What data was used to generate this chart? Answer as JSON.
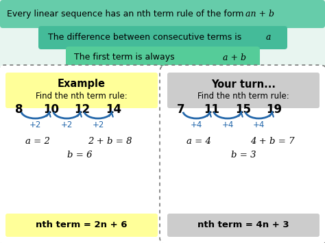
{
  "bg_color": "#e8f5f0",
  "top_banner_color": "#66ccaa",
  "row2_bg": "#44bb99",
  "row3_bg": "#55cc99",
  "top_banner_text": "Every linear sequence has an nth term rule of the form ",
  "top_banner_math": "an + b",
  "row2_text": "The difference between consecutive terms is ",
  "row2_math": "a",
  "row3_text": "The first term is always ",
  "row3_math": "a + b",
  "example_title": "Example",
  "example_subtitle": "Find the nth term rule:",
  "example_seq": [
    8,
    10,
    12,
    14
  ],
  "example_diff": "+2",
  "example_a_eq": "a = 2",
  "example_ab_eq": "2 + b = 8",
  "example_b_eq": "b = 6",
  "example_result": "nth term = 2n + 6",
  "example_header_color": "#ffff99",
  "example_result_color": "#ffff99",
  "yourturn_title": "Your turn...",
  "yourturn_subtitle": "Find the nth term rule:",
  "yourturn_seq": [
    7,
    11,
    15,
    19
  ],
  "yourturn_diff": "+4",
  "yourturn_a_eq": "a = 4",
  "yourturn_ab_eq": "4 + b = 7",
  "yourturn_b_eq": "b = 3",
  "yourturn_result": "nth term = 4n + 3",
  "yourturn_header_color": "#cccccc",
  "yourturn_result_color": "#cccccc",
  "arc_color": "#2266aa",
  "white": "#ffffff"
}
